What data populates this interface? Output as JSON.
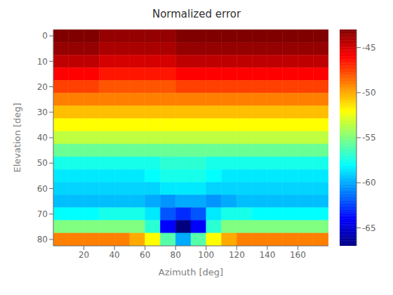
{
  "chart_data": {
    "type": "heatmap",
    "title": "Normalized error",
    "xlabel": "Azimuth [deg]",
    "ylabel": "Elevation [deg]",
    "x": [
      5,
      15,
      25,
      35,
      45,
      55,
      65,
      75,
      85,
      95,
      105,
      115,
      125,
      135,
      145,
      155,
      165,
      175
    ],
    "y": [
      0,
      5,
      10,
      15,
      20,
      25,
      30,
      35,
      40,
      45,
      50,
      55,
      60,
      65,
      70,
      75,
      80
    ],
    "values": [
      [
        -43.0,
        -43.0,
        -43.0,
        -43.5,
        -43.5,
        -43.5,
        -43.5,
        -43.5,
        -43.0,
        -43.0,
        -43.0,
        -43.0,
        -43.0,
        -43.0,
        -43.0,
        -43.0,
        -43.0,
        -43.0
      ],
      [
        -43.5,
        -43.5,
        -43.5,
        -44.0,
        -44.0,
        -44.0,
        -44.0,
        -44.0,
        -43.5,
        -43.5,
        -43.5,
        -43.5,
        -43.5,
        -43.5,
        -43.5,
        -43.5,
        -43.5,
        -43.5
      ],
      [
        -44.5,
        -44.5,
        -44.5,
        -45.0,
        -45.0,
        -45.0,
        -45.0,
        -45.0,
        -44.5,
        -44.5,
        -44.5,
        -44.5,
        -44.5,
        -44.5,
        -44.5,
        -44.5,
        -44.5,
        -44.5
      ],
      [
        -46.0,
        -46.0,
        -46.0,
        -46.5,
        -46.5,
        -46.5,
        -46.5,
        -46.5,
        -46.0,
        -46.0,
        -46.0,
        -46.0,
        -46.0,
        -46.0,
        -46.0,
        -46.0,
        -46.0,
        -46.0
      ],
      [
        -47.5,
        -47.5,
        -47.5,
        -48.0,
        -48.0,
        -48.0,
        -48.0,
        -48.0,
        -47.5,
        -47.5,
        -47.5,
        -47.5,
        -47.5,
        -47.5,
        -47.5,
        -47.5,
        -47.5,
        -47.5
      ],
      [
        -49.0,
        -49.0,
        -49.0,
        -49.0,
        -49.0,
        -49.0,
        -49.0,
        -49.0,
        -49.0,
        -49.0,
        -49.0,
        -49.0,
        -49.0,
        -49.0,
        -49.0,
        -49.0,
        -49.0,
        -49.0
      ],
      [
        -50.5,
        -50.5,
        -50.5,
        -50.5,
        -50.5,
        -50.5,
        -50.5,
        -50.5,
        -50.5,
        -50.5,
        -50.5,
        -50.5,
        -50.5,
        -50.5,
        -50.5,
        -50.5,
        -50.5,
        -50.5
      ],
      [
        -52.0,
        -52.0,
        -52.0,
        -52.0,
        -52.0,
        -52.0,
        -52.0,
        -52.0,
        -52.0,
        -52.0,
        -52.0,
        -52.0,
        -52.0,
        -52.0,
        -52.0,
        -52.0,
        -52.0,
        -52.0
      ],
      [
        -53.5,
        -53.5,
        -53.5,
        -53.5,
        -53.5,
        -53.5,
        -53.5,
        -53.5,
        -53.5,
        -53.5,
        -53.5,
        -53.5,
        -53.5,
        -53.5,
        -53.5,
        -53.5,
        -53.5,
        -53.5
      ],
      [
        -55.5,
        -55.5,
        -55.5,
        -55.5,
        -55.5,
        -55.5,
        -55.5,
        -55.5,
        -55.5,
        -55.5,
        -55.5,
        -55.5,
        -55.5,
        -55.5,
        -55.5,
        -55.5,
        -55.5,
        -55.5
      ],
      [
        -57.5,
        -57.5,
        -57.5,
        -57.5,
        -57.5,
        -57.5,
        -57.5,
        -57.0,
        -57.0,
        -57.0,
        -57.5,
        -57.5,
        -57.5,
        -57.5,
        -57.5,
        -57.5,
        -57.5,
        -57.5
      ],
      [
        -58.5,
        -58.5,
        -58.5,
        -58.5,
        -58.5,
        -58.5,
        -58.0,
        -57.5,
        -57.5,
        -57.5,
        -58.0,
        -58.5,
        -58.5,
        -58.5,
        -58.5,
        -58.5,
        -58.5,
        -58.5
      ],
      [
        -59.0,
        -59.0,
        -59.0,
        -59.0,
        -59.0,
        -59.0,
        -59.0,
        -58.5,
        -58.5,
        -58.5,
        -59.0,
        -59.0,
        -59.0,
        -59.0,
        -59.0,
        -59.0,
        -59.0,
        -59.0
      ],
      [
        -59.5,
        -59.5,
        -59.5,
        -59.5,
        -59.5,
        -59.5,
        -60.0,
        -60.5,
        -60.0,
        -60.0,
        -60.5,
        -60.0,
        -59.5,
        -59.5,
        -59.5,
        -59.5,
        -59.5,
        -59.5
      ],
      [
        -58.0,
        -58.0,
        -58.0,
        -57.5,
        -57.5,
        -57.5,
        -58.5,
        -62.0,
        -63.0,
        -62.0,
        -58.5,
        -57.5,
        -57.5,
        -58.0,
        -58.0,
        -58.0,
        -58.0,
        -58.0
      ],
      [
        -55.0,
        -55.0,
        -55.0,
        -55.0,
        -55.0,
        -55.0,
        -57.0,
        -64.0,
        -67.0,
        -64.0,
        -57.0,
        -55.0,
        -55.0,
        -55.0,
        -55.0,
        -55.0,
        -55.0,
        -55.0
      ],
      [
        -49.0,
        -49.0,
        -49.0,
        -49.0,
        -49.0,
        -50.0,
        -52.0,
        -56.0,
        -60.0,
        -56.0,
        -52.0,
        -50.0,
        -49.0,
        -49.0,
        -49.0,
        -49.0,
        -49.0,
        -49.0
      ]
    ],
    "xlim": [
      0,
      180
    ],
    "xticks": [
      20,
      40,
      60,
      80,
      100,
      120,
      140,
      160
    ],
    "ylim": [
      82.5,
      -2.5
    ],
    "yticks": [
      0,
      10,
      20,
      30,
      40,
      50,
      60,
      70,
      80
    ],
    "color": "jet",
    "colorbar_lim": [
      -67,
      -43
    ],
    "colorbar_ticks": [
      -65,
      -60,
      -55,
      -50,
      -45
    ]
  }
}
